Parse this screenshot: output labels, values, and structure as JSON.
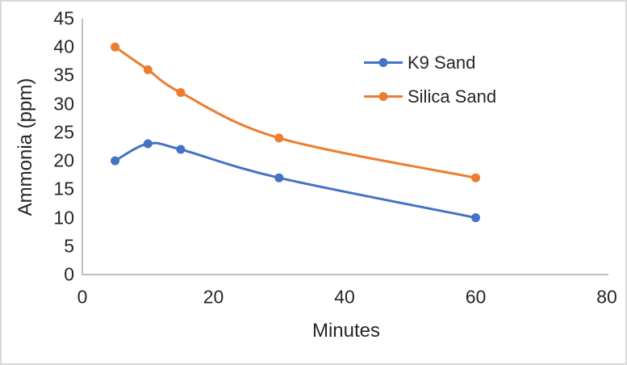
{
  "chart_data": {
    "type": "line",
    "title": "",
    "xlabel": "Minutes",
    "ylabel": "Ammonia (ppm)",
    "xlim": [
      0,
      80
    ],
    "ylim": [
      0,
      45
    ],
    "x_ticks": [
      0,
      20,
      40,
      60,
      80
    ],
    "y_ticks": [
      0,
      5,
      10,
      15,
      20,
      25,
      30,
      35,
      40,
      45
    ],
    "grid": false,
    "smooth": true,
    "marker": "circle",
    "legend_position": "inside-top-right",
    "series": [
      {
        "name": "K9 Sand",
        "color": "#4472C4",
        "x": [
          5,
          10,
          15,
          30,
          60
        ],
        "y": [
          20,
          23,
          22,
          17,
          10
        ]
      },
      {
        "name": "Silica Sand",
        "color": "#ED7D31",
        "x": [
          5,
          10,
          15,
          30,
          60
        ],
        "y": [
          40,
          36,
          32,
          24,
          17
        ]
      }
    ]
  },
  "colors": {
    "axis_line": "#BFBFBF",
    "text": "#262626",
    "frame_border": "#D9D9D9",
    "background": "#FFFFFF"
  }
}
